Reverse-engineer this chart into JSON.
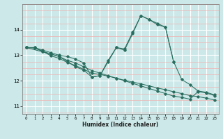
{
  "xlabel": "Humidex (Indice chaleur)",
  "bg_color": "#cce8e8",
  "grid_major_color": "#ffffff",
  "grid_minor_color": "#f0b0b0",
  "line_color": "#2a6e60",
  "xlim": [
    -0.5,
    23.5
  ],
  "ylim": [
    10.7,
    15.0
  ],
  "yticks": [
    11,
    12,
    13,
    14
  ],
  "xticks": [
    0,
    1,
    2,
    3,
    4,
    5,
    6,
    7,
    8,
    9,
    10,
    11,
    12,
    13,
    14,
    15,
    16,
    17,
    18,
    19,
    20,
    21,
    22,
    23
  ],
  "series": [
    {
      "x": [
        0,
        1,
        2,
        3,
        4,
        5,
        6,
        7,
        8,
        9,
        10,
        11,
        12,
        13,
        14,
        15,
        16,
        17,
        18,
        19,
        20,
        21,
        22,
        23
      ],
      "y": [
        13.3,
        13.3,
        13.2,
        13.1,
        13.0,
        12.95,
        12.85,
        12.7,
        12.15,
        12.2,
        12.8,
        13.3,
        13.25,
        13.9,
        14.55,
        14.4,
        14.25,
        14.1,
        12.75,
        12.05,
        11.85,
        11.6,
        11.55,
        11.45
      ]
    },
    {
      "x": [
        0,
        1,
        2,
        3,
        4,
        5,
        6,
        7,
        8,
        9,
        10,
        11,
        12,
        13,
        14,
        15,
        16,
        17,
        18,
        19,
        20,
        21,
        22,
        23
      ],
      "y": [
        13.3,
        13.3,
        13.15,
        13.05,
        12.95,
        12.8,
        12.7,
        12.55,
        12.4,
        12.3,
        12.2,
        12.1,
        12.0,
        11.9,
        11.8,
        11.7,
        11.6,
        11.5,
        11.4,
        11.35,
        11.28,
        11.58,
        11.52,
        11.42
      ]
    },
    {
      "x": [
        0,
        1,
        2,
        3,
        4,
        5,
        6,
        7,
        8,
        9,
        10,
        11,
        12,
        13,
        14,
        15,
        16,
        17,
        18,
        19,
        20,
        21,
        22,
        23
      ],
      "y": [
        13.3,
        13.28,
        13.15,
        12.98,
        12.88,
        12.72,
        12.6,
        12.45,
        12.3,
        12.25,
        12.18,
        12.1,
        12.02,
        11.95,
        11.88,
        11.8,
        11.72,
        11.65,
        11.57,
        11.5,
        11.42,
        11.38,
        11.32,
        11.25
      ]
    },
    {
      "x": [
        0,
        3,
        4,
        5,
        6,
        7,
        8,
        9,
        10,
        11,
        12,
        13,
        14,
        15,
        16,
        17,
        18
      ],
      "y": [
        13.3,
        13.05,
        12.95,
        12.75,
        12.55,
        12.42,
        12.15,
        12.2,
        12.75,
        13.3,
        13.2,
        13.85,
        14.55,
        14.4,
        14.2,
        14.1,
        12.75
      ]
    }
  ]
}
